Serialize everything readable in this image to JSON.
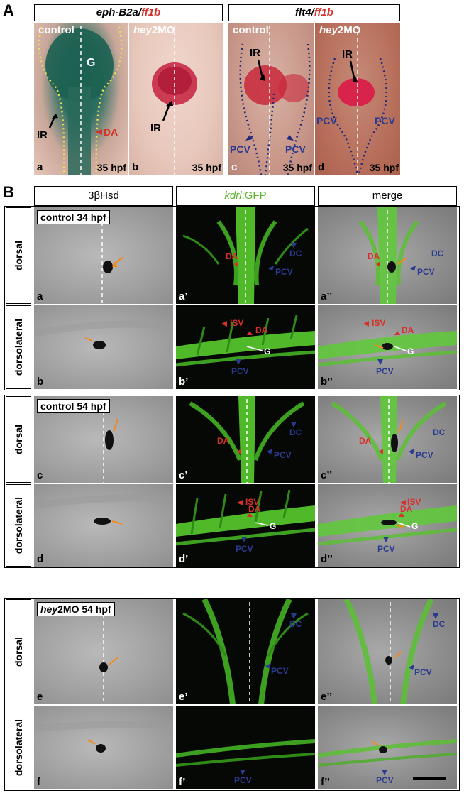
{
  "sectionA": {
    "letter": "A",
    "header_left": {
      "gene": "eph-B2a",
      "sep": "/",
      "red": "ff1b"
    },
    "header_right": {
      "gene": "flt4",
      "sep": "/",
      "red": "ff1b"
    },
    "panels": [
      {
        "letter": "a",
        "title": "control",
        "title_italic": "",
        "hpf": "35 hpf",
        "labels": {
          "G": "G",
          "IR": "IR",
          "DA": "DA"
        }
      },
      {
        "letter": "b",
        "title": "2MO",
        "title_italic": "hey",
        "hpf": "35 hpf",
        "labels": {
          "IR": "IR"
        }
      },
      {
        "letter": "c",
        "title": "control",
        "title_italic": "",
        "hpf": "35 hpf",
        "labels": {
          "IR": "IR",
          "PCV1": "PCV",
          "PCV2": "PCV"
        }
      },
      {
        "letter": "d",
        "title": "2MO",
        "title_italic": "hey",
        "hpf": "35 hpf",
        "labels": {
          "IR": "IR",
          "PCV1": "PCV",
          "PCV2": "PCV"
        }
      }
    ]
  },
  "sectionB": {
    "letter": "B",
    "columns": {
      "col1": "3βHsd",
      "col2_italic": "kdrl",
      "col2_rest": ":GFP",
      "col3": "merge"
    },
    "rows": [
      {
        "label": "dorsal",
        "condition": "control 34 hpf",
        "cond_italic": "",
        "letters": [
          "a",
          "a’",
          "a’’"
        ]
      },
      {
        "label": "dorsolateral",
        "condition": "",
        "cond_italic": "",
        "letters": [
          "b",
          "b’",
          "b’’"
        ]
      },
      {
        "label": "dorsal",
        "condition": "control 54 hpf",
        "cond_italic": "",
        "letters": [
          "c",
          "c’",
          "c’’"
        ]
      },
      {
        "label": "dorsolateral",
        "condition": "",
        "cond_italic": "",
        "letters": [
          "d",
          "d’",
          "d’’"
        ]
      },
      {
        "label": "dorsal",
        "condition": "2MO 54 hpf",
        "cond_italic": "hey",
        "letters": [
          "e",
          "e’",
          "e’’"
        ]
      },
      {
        "label": "dorsolateral",
        "condition": "",
        "cond_italic": "",
        "letters": [
          "f",
          "f’",
          "f’’"
        ]
      }
    ],
    "vessel_labels": {
      "DA": "DA",
      "DC": "DC",
      "PCV": "PCV",
      "ISV": "ISV",
      "G": "G"
    }
  },
  "colors": {
    "red_label": "#d6312a",
    "blue_label": "#2a3b8f",
    "gfp": "#5bd12f",
    "arrow_orange": "#f08a1c"
  }
}
